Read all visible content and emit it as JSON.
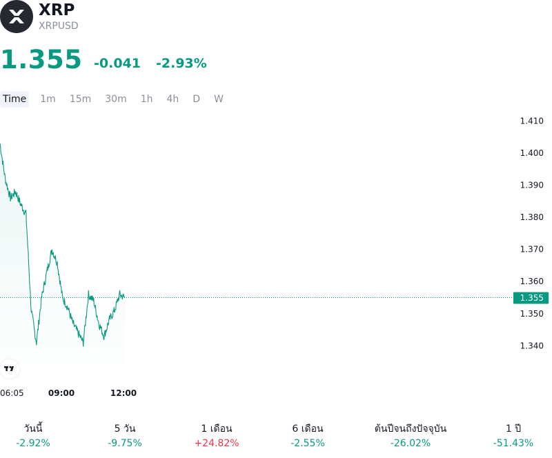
{
  "header": {
    "symbol_name": "XRP",
    "ticker": "XRPUSD",
    "logo": "xrp-logo-icon"
  },
  "quote": {
    "price": "1.355",
    "change": "-0.041",
    "change_percent": "-2.93%"
  },
  "intervals": [
    "Time",
    "1m",
    "15m",
    "30m",
    "1h",
    "4h",
    "D",
    "W"
  ],
  "active_interval": "Time",
  "colors": {
    "accent": "#089981",
    "positive_red": "#f23645",
    "text": "#131722",
    "muted": "#8a8f99"
  },
  "chart_data": {
    "type": "area",
    "x_ticks": [
      "06:05",
      "09:00",
      "12:00"
    ],
    "y_ticks": [
      "1.410",
      "1.400",
      "1.390",
      "1.380",
      "1.370",
      "1.360",
      "1.350",
      "1.340"
    ],
    "ylim": [
      1.336,
      1.412
    ],
    "current_price_label": "1.355",
    "current_price": 1.355,
    "x": [
      "06:05",
      "06:20",
      "06:35",
      "06:50",
      "07:05",
      "07:20",
      "07:35",
      "07:50",
      "08:05",
      "08:20",
      "08:35",
      "08:50",
      "09:05",
      "09:20",
      "09:35",
      "09:50",
      "10:05",
      "10:20",
      "10:35",
      "10:50",
      "11:05",
      "11:20",
      "11:35",
      "11:50",
      "12:05"
    ],
    "values": [
      1.403,
      1.392,
      1.386,
      1.388,
      1.384,
      1.381,
      1.351,
      1.341,
      1.355,
      1.363,
      1.37,
      1.366,
      1.355,
      1.352,
      1.347,
      1.344,
      1.341,
      1.356,
      1.354,
      1.347,
      1.343,
      1.348,
      1.351,
      1.356,
      1.355
    ],
    "grid": false,
    "legend": "none"
  },
  "performance": [
    {
      "label": "วันนี้",
      "value": "-2.92%",
      "direction": "neg"
    },
    {
      "label": "5 วัน",
      "value": "-9.75%",
      "direction": "neg"
    },
    {
      "label": "1 เดือน",
      "value": "+24.82%",
      "direction": "pos"
    },
    {
      "label": "6 เดือน",
      "value": "-2.55%",
      "direction": "neg"
    },
    {
      "label": "ต้นปีจนถึงปัจจุบัน",
      "value": "-26.02%",
      "direction": "neg"
    },
    {
      "label": "1 ปี",
      "value": "-51.43%",
      "direction": "neg"
    }
  ]
}
